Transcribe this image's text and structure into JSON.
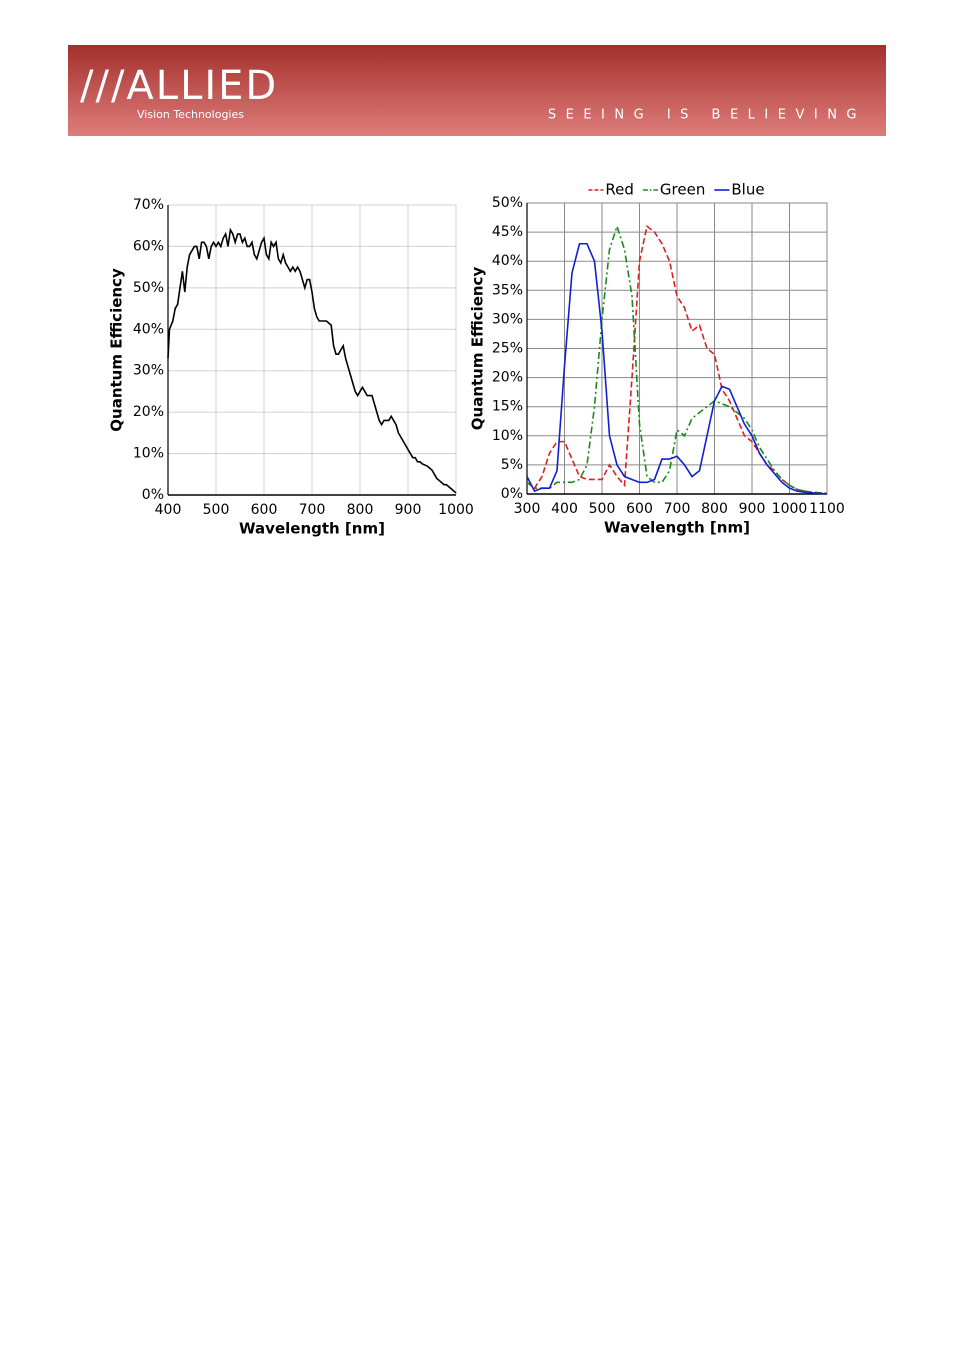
{
  "header": {
    "logo": "///ALLIED",
    "subtitle": "Vision Technologies",
    "tagline": "SEEING IS BELIEVING"
  },
  "chart_data": [
    {
      "type": "line",
      "x_label": "Wavelength [nm]",
      "y_label": "Quantum Efficiency",
      "grid": true,
      "xlim": [
        400,
        1000
      ],
      "xticks": [
        400,
        500,
        600,
        700,
        800,
        900,
        1000
      ],
      "ylim": [
        0,
        70
      ],
      "yticks": [
        {
          "value": 0,
          "label": "0%"
        },
        {
          "value": 10,
          "label": "10%"
        },
        {
          "value": 20,
          "label": "20%"
        },
        {
          "value": 30,
          "label": "30%"
        },
        {
          "value": 40,
          "label": "40%"
        },
        {
          "value": 50,
          "label": "50%"
        },
        {
          "value": 60,
          "label": "60%"
        },
        {
          "value": 70,
          "label": "70%"
        }
      ],
      "x": [
        400,
        403,
        410,
        415,
        420,
        425,
        430,
        435,
        440,
        445,
        450,
        455,
        460,
        465,
        470,
        475,
        480,
        485,
        490,
        495,
        500,
        505,
        510,
        515,
        520,
        525,
        530,
        535,
        540,
        545,
        550,
        555,
        560,
        565,
        570,
        575,
        580,
        585,
        590,
        595,
        600,
        605,
        610,
        615,
        620,
        625,
        630,
        635,
        640,
        645,
        650,
        655,
        660,
        665,
        670,
        675,
        680,
        685,
        690,
        695,
        700,
        705,
        710,
        715,
        720,
        730,
        740,
        745,
        750,
        755,
        760,
        765,
        770,
        775,
        780,
        785,
        790,
        795,
        800,
        805,
        810,
        815,
        820,
        825,
        830,
        835,
        840,
        845,
        850,
        855,
        860,
        865,
        870,
        875,
        880,
        885,
        890,
        895,
        900,
        905,
        910,
        915,
        920,
        925,
        930,
        940,
        950,
        955,
        960,
        965,
        970,
        975,
        980,
        985,
        990,
        995,
        1000
      ],
      "series": [
        {
          "color": "#000000",
          "dash": "solid",
          "values": [
            33,
            40,
            42,
            45,
            46,
            50,
            54,
            49,
            55,
            58,
            59,
            60,
            60,
            57,
            61,
            61,
            60,
            57,
            60,
            61,
            60,
            61,
            60,
            62,
            63,
            60,
            64,
            63,
            61,
            63,
            63,
            61,
            62,
            60,
            60,
            61,
            58,
            57,
            59,
            61,
            62,
            58,
            57,
            61,
            60,
            61,
            57,
            56,
            58,
            56,
            55,
            54,
            55,
            54,
            55,
            54,
            52,
            50,
            52,
            52,
            49,
            45,
            43,
            42,
            42,
            42,
            41,
            36,
            34,
            34,
            35,
            36,
            33,
            31,
            29,
            27,
            25,
            24,
            25,
            26,
            25,
            24,
            24,
            24,
            22,
            20,
            18,
            17,
            18,
            18,
            18,
            19,
            18,
            17,
            15,
            14,
            13,
            12,
            11,
            10,
            9,
            9,
            8,
            8,
            7.5,
            7,
            6,
            5,
            4,
            3.5,
            3,
            2.5,
            2.5,
            2,
            1.5,
            1,
            0.5
          ]
        }
      ]
    },
    {
      "type": "line",
      "x_label": "Wavelength [nm]",
      "y_label": "Quantum Efficiency",
      "grid": true,
      "legend": "top",
      "xlim": [
        300,
        1100
      ],
      "xticks": [
        300,
        400,
        500,
        600,
        700,
        800,
        900,
        1000,
        1100
      ],
      "ylim": [
        0,
        50
      ],
      "yticks": [
        {
          "value": 0,
          "label": "0%"
        },
        {
          "value": 5,
          "label": "5%"
        },
        {
          "value": 10,
          "label": "10%"
        },
        {
          "value": 15,
          "label": "15%"
        },
        {
          "value": 20,
          "label": "20%"
        },
        {
          "value": 25,
          "label": "25%"
        },
        {
          "value": 30,
          "label": "30%"
        },
        {
          "value": 35,
          "label": "35%"
        },
        {
          "value": 40,
          "label": "40%"
        },
        {
          "value": 45,
          "label": "45%"
        },
        {
          "value": 50,
          "label": "50%"
        }
      ],
      "x": [
        300,
        320,
        340,
        360,
        380,
        400,
        420,
        440,
        460,
        480,
        500,
        520,
        540,
        560,
        580,
        600,
        620,
        640,
        660,
        680,
        700,
        720,
        740,
        760,
        780,
        800,
        820,
        840,
        860,
        880,
        900,
        920,
        940,
        960,
        980,
        1000,
        1020,
        1040,
        1060,
        1080,
        1100
      ],
      "series": [
        {
          "name": "Red",
          "color": "#e02020",
          "dash": "dashed",
          "values": [
            2,
            1,
            3,
            7,
            9,
            9,
            6,
            3,
            2.5,
            2.5,
            2.5,
            5,
            3,
            1.5,
            20,
            40,
            46,
            45,
            43,
            40,
            34,
            32,
            28,
            29,
            25,
            24,
            18,
            16,
            13,
            10,
            9,
            7,
            5,
            4,
            2.5,
            1.5,
            0.8,
            0.5,
            0.3,
            0.2,
            0.1
          ]
        },
        {
          "name": "Green",
          "color": "#1a8a1a",
          "dash": "dashdot",
          "values": [
            2,
            1,
            1,
            1,
            2,
            2,
            2,
            2.5,
            5,
            15,
            30,
            42,
            46,
            42,
            34,
            12,
            3,
            2,
            2,
            4,
            11,
            10,
            13,
            14,
            15,
            16,
            15.5,
            15,
            14,
            13,
            11,
            8,
            6,
            4,
            2.5,
            1.5,
            0.8,
            0.5,
            0.3,
            0.2,
            0.1
          ]
        },
        {
          "name": "Blue",
          "color": "#1020d0",
          "dash": "solid",
          "values": [
            3,
            0.5,
            1,
            1,
            4,
            22,
            38,
            43,
            43,
            40,
            28,
            10,
            5,
            3,
            2.5,
            2,
            2,
            2.5,
            6,
            6,
            6.5,
            5,
            3,
            4,
            10,
            16,
            18.5,
            18,
            15,
            12,
            10,
            7,
            5,
            3.5,
            2,
            1,
            0.5,
            0.3,
            0.2,
            0.1,
            0
          ]
        }
      ]
    }
  ]
}
